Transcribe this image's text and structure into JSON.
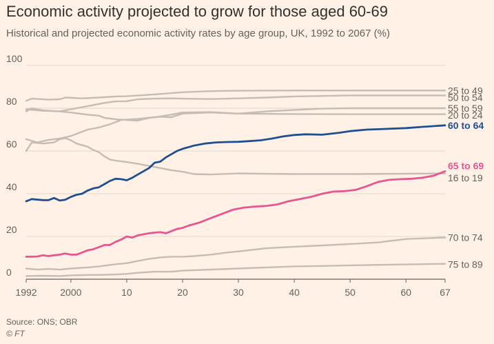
{
  "header": {
    "title": "Economic activity projected to grow for those aged 60-69",
    "subtitle": "Historical and projected economic activity rates by age group, UK, 1992 to 2067 (%)"
  },
  "footer": {
    "source": "Source: ONS; OBR",
    "credit": "© FT"
  },
  "colors": {
    "background": "#fff1e5",
    "grey_series": "#c5bdb5",
    "highlight_blue": "#1d4f91",
    "highlight_pink": "#e6568f",
    "grid": "#e0d6cc",
    "axis": "#66605c"
  },
  "chart_data": {
    "type": "line",
    "xlim": [
      1992,
      2067
    ],
    "ylim": [
      0,
      100
    ],
    "y_ticks": [
      0,
      20,
      40,
      60,
      80,
      100
    ],
    "x_ticks": [
      {
        "value": 1992,
        "label": "1992"
      },
      {
        "value": 2000,
        "label": "2000"
      },
      {
        "value": 2010,
        "label": "10"
      },
      {
        "value": 2020,
        "label": "20"
      },
      {
        "value": 2030,
        "label": "30"
      },
      {
        "value": 2040,
        "label": "40"
      },
      {
        "value": 2050,
        "label": "50"
      },
      {
        "value": 2060,
        "label": "60"
      },
      {
        "value": 2067,
        "label": "67"
      }
    ],
    "grid": true,
    "legend": "direct labels at right end of lines",
    "series": [
      {
        "name": "25 to 49",
        "color": "grey",
        "highlight": false,
        "label_y": 88.3,
        "points": [
          [
            1992,
            83.5
          ],
          [
            1993,
            84.5
          ],
          [
            1996,
            84.0
          ],
          [
            1998,
            84.2
          ],
          [
            1999,
            85.0
          ],
          [
            2002,
            84.6
          ],
          [
            2005,
            85.0
          ],
          [
            2008,
            85.5
          ],
          [
            2010,
            85.6
          ],
          [
            2015,
            86.5
          ],
          [
            2020,
            87.5
          ],
          [
            2025,
            88.0
          ],
          [
            2030,
            88.2
          ],
          [
            2040,
            88.3
          ],
          [
            2050,
            88.3
          ],
          [
            2067,
            88.3
          ]
        ]
      },
      {
        "name": "50 to 54",
        "color": "grey",
        "highlight": false,
        "label_y": 85.0,
        "points": [
          [
            1992,
            79.5
          ],
          [
            1995,
            78.8
          ],
          [
            1998,
            78.5
          ],
          [
            2000,
            79.5
          ],
          [
            2003,
            81.0
          ],
          [
            2006,
            82.5
          ],
          [
            2008,
            83.2
          ],
          [
            2010,
            83.3
          ],
          [
            2012,
            84.2
          ],
          [
            2015,
            84.5
          ],
          [
            2018,
            84.6
          ],
          [
            2020,
            84.5
          ],
          [
            2025,
            84.3
          ],
          [
            2030,
            84.6
          ],
          [
            2035,
            85.0
          ],
          [
            2040,
            85.5
          ],
          [
            2050,
            86.0
          ],
          [
            2067,
            86.0
          ]
        ]
      },
      {
        "name": "55 to 59",
        "color": "grey",
        "highlight": false,
        "label_y": 80.0,
        "points": [
          [
            1992,
            65.5
          ],
          [
            1994,
            64.0
          ],
          [
            1996,
            65.2
          ],
          [
            1998,
            65.8
          ],
          [
            2000,
            67.0
          ],
          [
            2003,
            70.0
          ],
          [
            2005,
            71.0
          ],
          [
            2007,
            72.5
          ],
          [
            2009,
            74.5
          ],
          [
            2012,
            75.0
          ],
          [
            2015,
            75.8
          ],
          [
            2018,
            77.0
          ],
          [
            2020,
            78.0
          ],
          [
            2025,
            78.2
          ],
          [
            2030,
            77.5
          ],
          [
            2035,
            78.5
          ],
          [
            2040,
            79.2
          ],
          [
            2045,
            79.8
          ],
          [
            2050,
            80.0
          ],
          [
            2067,
            80.0
          ]
        ]
      },
      {
        "name": "20 to 24",
        "color": "grey",
        "highlight": false,
        "label_y": 76.8,
        "points": [
          [
            1992,
            78.5
          ],
          [
            1993,
            80.0
          ],
          [
            1995,
            79.0
          ],
          [
            1998,
            78.5
          ],
          [
            2000,
            78.0
          ],
          [
            2003,
            77.0
          ],
          [
            2005,
            76.5
          ],
          [
            2006,
            75.5
          ],
          [
            2008,
            74.8
          ],
          [
            2010,
            74.5
          ],
          [
            2012,
            74.2
          ],
          [
            2014,
            75.5
          ],
          [
            2016,
            76.0
          ],
          [
            2018,
            75.8
          ],
          [
            2020,
            77.5
          ],
          [
            2025,
            78.0
          ],
          [
            2030,
            77.5
          ],
          [
            2040,
            77.3
          ],
          [
            2050,
            77.2
          ],
          [
            2067,
            77.2
          ]
        ]
      },
      {
        "name": "60 to 64",
        "color": "blue",
        "highlight": true,
        "label_y": 72.0,
        "points": [
          [
            1992,
            36.5
          ],
          [
            1993,
            37.5
          ],
          [
            1995,
            37.0
          ],
          [
            1996,
            37.0
          ],
          [
            1997,
            38.0
          ],
          [
            1998,
            36.8
          ],
          [
            1999,
            37.2
          ],
          [
            2000,
            38.5
          ],
          [
            2001,
            39.5
          ],
          [
            2002,
            40.0
          ],
          [
            2003,
            41.5
          ],
          [
            2004,
            42.5
          ],
          [
            2005,
            43.0
          ],
          [
            2006,
            44.5
          ],
          [
            2007,
            46.0
          ],
          [
            2008,
            47.0
          ],
          [
            2009,
            46.8
          ],
          [
            2010,
            46.3
          ],
          [
            2011,
            47.5
          ],
          [
            2012,
            49.0
          ],
          [
            2013,
            50.5
          ],
          [
            2014,
            52.0
          ],
          [
            2015,
            54.5
          ],
          [
            2016,
            55.0
          ],
          [
            2017,
            57.0
          ],
          [
            2018,
            58.5
          ],
          [
            2019,
            60.0
          ],
          [
            2020,
            61.0
          ],
          [
            2022,
            62.5
          ],
          [
            2024,
            63.5
          ],
          [
            2026,
            64.0
          ],
          [
            2028,
            64.2
          ],
          [
            2030,
            64.3
          ],
          [
            2032,
            64.6
          ],
          [
            2034,
            65.0
          ],
          [
            2036,
            65.8
          ],
          [
            2038,
            66.8
          ],
          [
            2040,
            67.5
          ],
          [
            2042,
            67.8
          ],
          [
            2045,
            67.6
          ],
          [
            2048,
            68.5
          ],
          [
            2050,
            69.3
          ],
          [
            2053,
            70.0
          ],
          [
            2056,
            70.3
          ],
          [
            2060,
            70.7
          ],
          [
            2063,
            71.3
          ],
          [
            2067,
            72.0
          ]
        ]
      },
      {
        "name": "16 to 19",
        "color": "grey",
        "highlight": false,
        "label_y": 47.5,
        "points": [
          [
            1992,
            60.0
          ],
          [
            1993,
            64.0
          ],
          [
            1995,
            63.5
          ],
          [
            1997,
            64.0
          ],
          [
            1998,
            65.5
          ],
          [
            1999,
            66.0
          ],
          [
            2000,
            65.0
          ],
          [
            2001,
            63.5
          ],
          [
            2003,
            62.0
          ],
          [
            2004,
            60.5
          ],
          [
            2005,
            59.5
          ],
          [
            2006,
            57.5
          ],
          [
            2007,
            56.0
          ],
          [
            2008,
            55.5
          ],
          [
            2010,
            54.8
          ],
          [
            2012,
            54.0
          ],
          [
            2014,
            53.0
          ],
          [
            2016,
            52.0
          ],
          [
            2018,
            51.0
          ],
          [
            2020,
            50.3
          ],
          [
            2022,
            49.2
          ],
          [
            2025,
            49.0
          ],
          [
            2030,
            49.5
          ],
          [
            2040,
            49.2
          ],
          [
            2050,
            49.2
          ],
          [
            2067,
            49.5
          ]
        ]
      },
      {
        "name": "65 to 69",
        "color": "pink",
        "highlight": true,
        "label_y": 53.0,
        "points": [
          [
            1992,
            10.5
          ],
          [
            1994,
            10.6
          ],
          [
            1995,
            11.2
          ],
          [
            1996,
            10.8
          ],
          [
            1997,
            11.2
          ],
          [
            1998,
            11.5
          ],
          [
            1999,
            12.0
          ],
          [
            2000,
            11.5
          ],
          [
            2001,
            11.5
          ],
          [
            2002,
            12.5
          ],
          [
            2003,
            13.5
          ],
          [
            2004,
            14.0
          ],
          [
            2005,
            15.0
          ],
          [
            2006,
            16.0
          ],
          [
            2007,
            16.0
          ],
          [
            2008,
            17.5
          ],
          [
            2009,
            18.5
          ],
          [
            2010,
            20.0
          ],
          [
            2011,
            19.5
          ],
          [
            2012,
            20.5
          ],
          [
            2013,
            21.0
          ],
          [
            2014,
            21.5
          ],
          [
            2015,
            21.8
          ],
          [
            2016,
            22.0
          ],
          [
            2017,
            21.5
          ],
          [
            2018,
            22.5
          ],
          [
            2019,
            23.5
          ],
          [
            2020,
            24.0
          ],
          [
            2021,
            25.0
          ],
          [
            2023,
            26.5
          ],
          [
            2025,
            28.5
          ],
          [
            2027,
            30.5
          ],
          [
            2029,
            32.5
          ],
          [
            2031,
            33.5
          ],
          [
            2033,
            34.0
          ],
          [
            2035,
            34.3
          ],
          [
            2037,
            35.0
          ],
          [
            2039,
            36.5
          ],
          [
            2041,
            37.5
          ],
          [
            2043,
            38.5
          ],
          [
            2045,
            40.0
          ],
          [
            2047,
            41.0
          ],
          [
            2049,
            41.2
          ],
          [
            2051,
            41.8
          ],
          [
            2053,
            43.5
          ],
          [
            2055,
            45.5
          ],
          [
            2057,
            46.5
          ],
          [
            2059,
            46.8
          ],
          [
            2061,
            47.0
          ],
          [
            2063,
            47.5
          ],
          [
            2065,
            48.5
          ],
          [
            2067,
            50.5
          ]
        ]
      },
      {
        "name": "70 to 74",
        "color": "grey",
        "highlight": false,
        "label_y": 19.5,
        "points": [
          [
            1992,
            5.0
          ],
          [
            1994,
            4.5
          ],
          [
            1996,
            4.8
          ],
          [
            1998,
            4.5
          ],
          [
            2000,
            5.0
          ],
          [
            2003,
            5.5
          ],
          [
            2005,
            6.0
          ],
          [
            2008,
            7.0
          ],
          [
            2010,
            7.5
          ],
          [
            2012,
            8.5
          ],
          [
            2014,
            9.5
          ],
          [
            2016,
            10.2
          ],
          [
            2018,
            10.5
          ],
          [
            2020,
            10.5
          ],
          [
            2022,
            10.8
          ],
          [
            2025,
            11.5
          ],
          [
            2028,
            12.5
          ],
          [
            2030,
            13.0
          ],
          [
            2035,
            14.5
          ],
          [
            2040,
            15.2
          ],
          [
            2045,
            15.8
          ],
          [
            2050,
            16.5
          ],
          [
            2055,
            17.2
          ],
          [
            2060,
            18.8
          ],
          [
            2067,
            19.5
          ]
        ]
      },
      {
        "name": "75 to 89",
        "color": "grey",
        "highlight": false,
        "label_y": 7.0,
        "points": [
          [
            1992,
            1.5
          ],
          [
            1995,
            1.6
          ],
          [
            1998,
            1.5
          ],
          [
            2000,
            1.8
          ],
          [
            2003,
            2.0
          ],
          [
            2005,
            2.0
          ],
          [
            2008,
            2.2
          ],
          [
            2010,
            2.5
          ],
          [
            2012,
            3.0
          ],
          [
            2015,
            3.5
          ],
          [
            2018,
            3.5
          ],
          [
            2020,
            4.0
          ],
          [
            2025,
            4.5
          ],
          [
            2030,
            5.0
          ],
          [
            2035,
            5.5
          ],
          [
            2040,
            6.0
          ],
          [
            2045,
            6.2
          ],
          [
            2050,
            6.5
          ],
          [
            2055,
            6.7
          ],
          [
            2060,
            6.9
          ],
          [
            2067,
            7.2
          ]
        ]
      }
    ]
  }
}
